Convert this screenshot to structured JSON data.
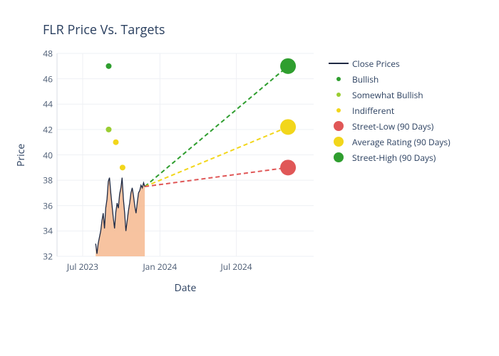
{
  "title": "FLR Price Vs. Targets",
  "axes": {
    "x_label": "Date",
    "y_label": "Price",
    "x_min_ts": 1682899200,
    "x_max_ts": 1735689600,
    "y_min": 32,
    "y_max": 48,
    "x_ticks": [
      {
        "ts": 1688169600,
        "label": "Jul 2023"
      },
      {
        "ts": 1704067200,
        "label": "Jan 2024"
      },
      {
        "ts": 1719792000,
        "label": "Jul 2024"
      }
    ],
    "y_ticks": [
      32,
      34,
      36,
      38,
      40,
      42,
      44,
      46,
      48
    ],
    "grid_color": "#eef0f4",
    "zero_line_color": "#d8dde4"
  },
  "colors": {
    "title": "#2a3f5f",
    "axis_text": "#4a5a72",
    "close_line": "#1f2a44",
    "close_fill": "#f6b88f",
    "close_fill_opacity": 0.85,
    "bullish": "#2f9e2f",
    "somewhat_bullish": "#9acd32",
    "indifferent": "#f2d61b",
    "street_low": "#e05757",
    "average_rating": "#f2d61b",
    "street_high": "#2f9e2f"
  },
  "line_styles": {
    "close_width": 1.3,
    "projection_width": 2,
    "projection_dash": "6 4",
    "legend_small_dot": 6,
    "legend_big_dot": 14,
    "target_marker_r": 11,
    "scatter_marker_r": 4
  },
  "close_prices": {
    "start_ts": 1690848000,
    "step_days": 3,
    "values": [
      33.0,
      32.2,
      33.0,
      33.5,
      34.0,
      34.8,
      35.4,
      34.2,
      35.8,
      36.5,
      37.9,
      38.2,
      37.0,
      36.0,
      35.0,
      34.2,
      35.5,
      36.2,
      35.8,
      36.9,
      37.4,
      38.2,
      36.5,
      35.4,
      34.0,
      34.8,
      35.6,
      36.2,
      37.0,
      37.4,
      36.8,
      36.0,
      35.4,
      36.2,
      37.0,
      37.2,
      37.6,
      37.4,
      37.8,
      37.5
    ],
    "fill_baseline": 31
  },
  "projections_origin": {
    "ts": 1700956800,
    "price": 37.5
  },
  "targets": [
    {
      "key": "high",
      "ts": 1730419200,
      "price": 47.0,
      "color_key": "street_high"
    },
    {
      "key": "avg",
      "ts": 1730419200,
      "price": 42.2,
      "color_key": "average_rating"
    },
    {
      "key": "low",
      "ts": 1730419200,
      "price": 39.0,
      "color_key": "street_low"
    }
  ],
  "analyst_points": [
    {
      "ts": 1693526400,
      "price": 47.0,
      "color_key": "bullish"
    },
    {
      "ts": 1693526400,
      "price": 42.0,
      "color_key": "somewhat_bullish"
    },
    {
      "ts": 1694995200,
      "price": 41.0,
      "color_key": "indifferent"
    },
    {
      "ts": 1696377600,
      "price": 39.0,
      "color_key": "indifferent"
    }
  ],
  "legend": [
    {
      "type": "line",
      "label": "Close Prices",
      "color_key": "close_line"
    },
    {
      "type": "small_dot",
      "label": "Bullish",
      "color_key": "bullish"
    },
    {
      "type": "small_dot",
      "label": "Somewhat Bullish",
      "color_key": "somewhat_bullish"
    },
    {
      "type": "small_dot",
      "label": "Indifferent",
      "color_key": "indifferent"
    },
    {
      "type": "big_dot",
      "label": "Street-Low (90 Days)",
      "color_key": "street_low"
    },
    {
      "type": "big_dot",
      "label": "Average Rating (90 Days)",
      "color_key": "average_rating"
    },
    {
      "type": "big_dot",
      "label": "Street-High (90 Days)",
      "color_key": "street_high"
    }
  ]
}
